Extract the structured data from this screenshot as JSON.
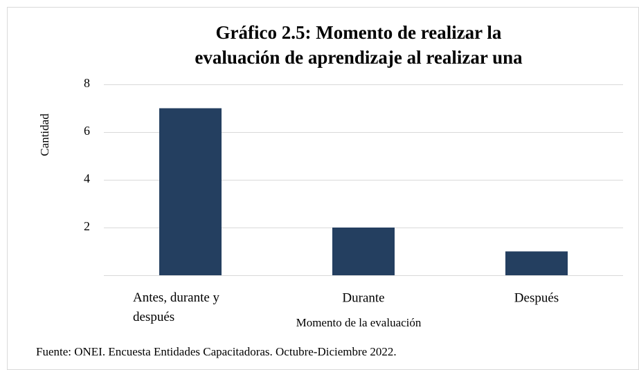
{
  "chart_data": {
    "type": "bar",
    "title": [
      "Gráfico 2.5: Momento de realizar la",
      "evaluación de aprendizaje al realizar una"
    ],
    "x_label": "Momento de la evaluación",
    "y_label": "Cantidad",
    "source": "Fuente: ONEI. Encuesta Entidades Capacitadoras. Octubre-Diciembre 2022.",
    "categories": [
      "Antes, durante y después",
      "Durante",
      "Después"
    ],
    "values": [
      7,
      2,
      1
    ],
    "color": "#243f60",
    "ylim": [
      0,
      8
    ],
    "yticks": [
      2,
      4,
      6,
      8
    ],
    "grid": true
  }
}
